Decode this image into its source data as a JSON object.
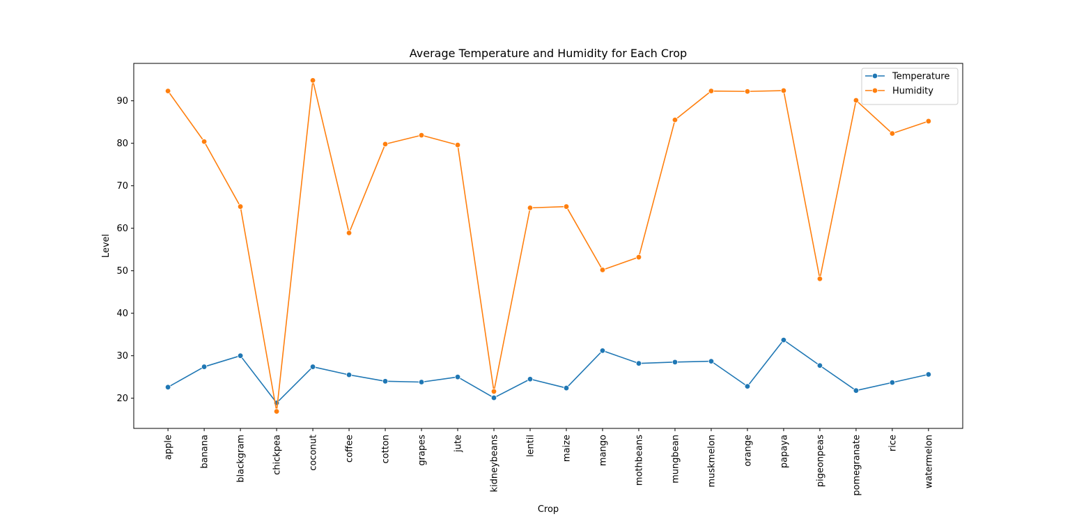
{
  "chart_data": {
    "type": "line",
    "title": "Average Temperature and Humidity for Each Crop",
    "xlabel": "Crop",
    "ylabel": "Level",
    "categories": [
      "apple",
      "banana",
      "blackgram",
      "chickpea",
      "coconut",
      "coffee",
      "cotton",
      "grapes",
      "jute",
      "kidneybeans",
      "lentil",
      "maize",
      "mango",
      "mothbeans",
      "mungbean",
      "muskmelon",
      "orange",
      "papaya",
      "pigeonpeas",
      "pomegranate",
      "rice",
      "watermelon"
    ],
    "series": [
      {
        "name": "Temperature",
        "color": "#1f77b4",
        "values": [
          22.6,
          27.4,
          30.0,
          18.9,
          27.4,
          25.5,
          24.0,
          23.8,
          25.0,
          20.1,
          24.5,
          22.4,
          31.2,
          28.2,
          28.5,
          28.7,
          22.8,
          33.7,
          27.7,
          21.8,
          23.7,
          25.6
        ]
      },
      {
        "name": "Humidity",
        "color": "#ff7f0e",
        "values": [
          92.3,
          80.4,
          65.1,
          16.9,
          94.8,
          58.9,
          79.8,
          81.9,
          79.6,
          21.6,
          64.8,
          65.1,
          50.2,
          53.2,
          85.5,
          92.3,
          92.2,
          92.4,
          48.1,
          90.1,
          82.3,
          85.2
        ]
      }
    ],
    "yticks": [
      20,
      30,
      40,
      50,
      60,
      70,
      80,
      90
    ],
    "ylim": [
      12.9,
      98.8
    ],
    "grid": false,
    "legend_position": "top-right",
    "marker": "circle"
  }
}
